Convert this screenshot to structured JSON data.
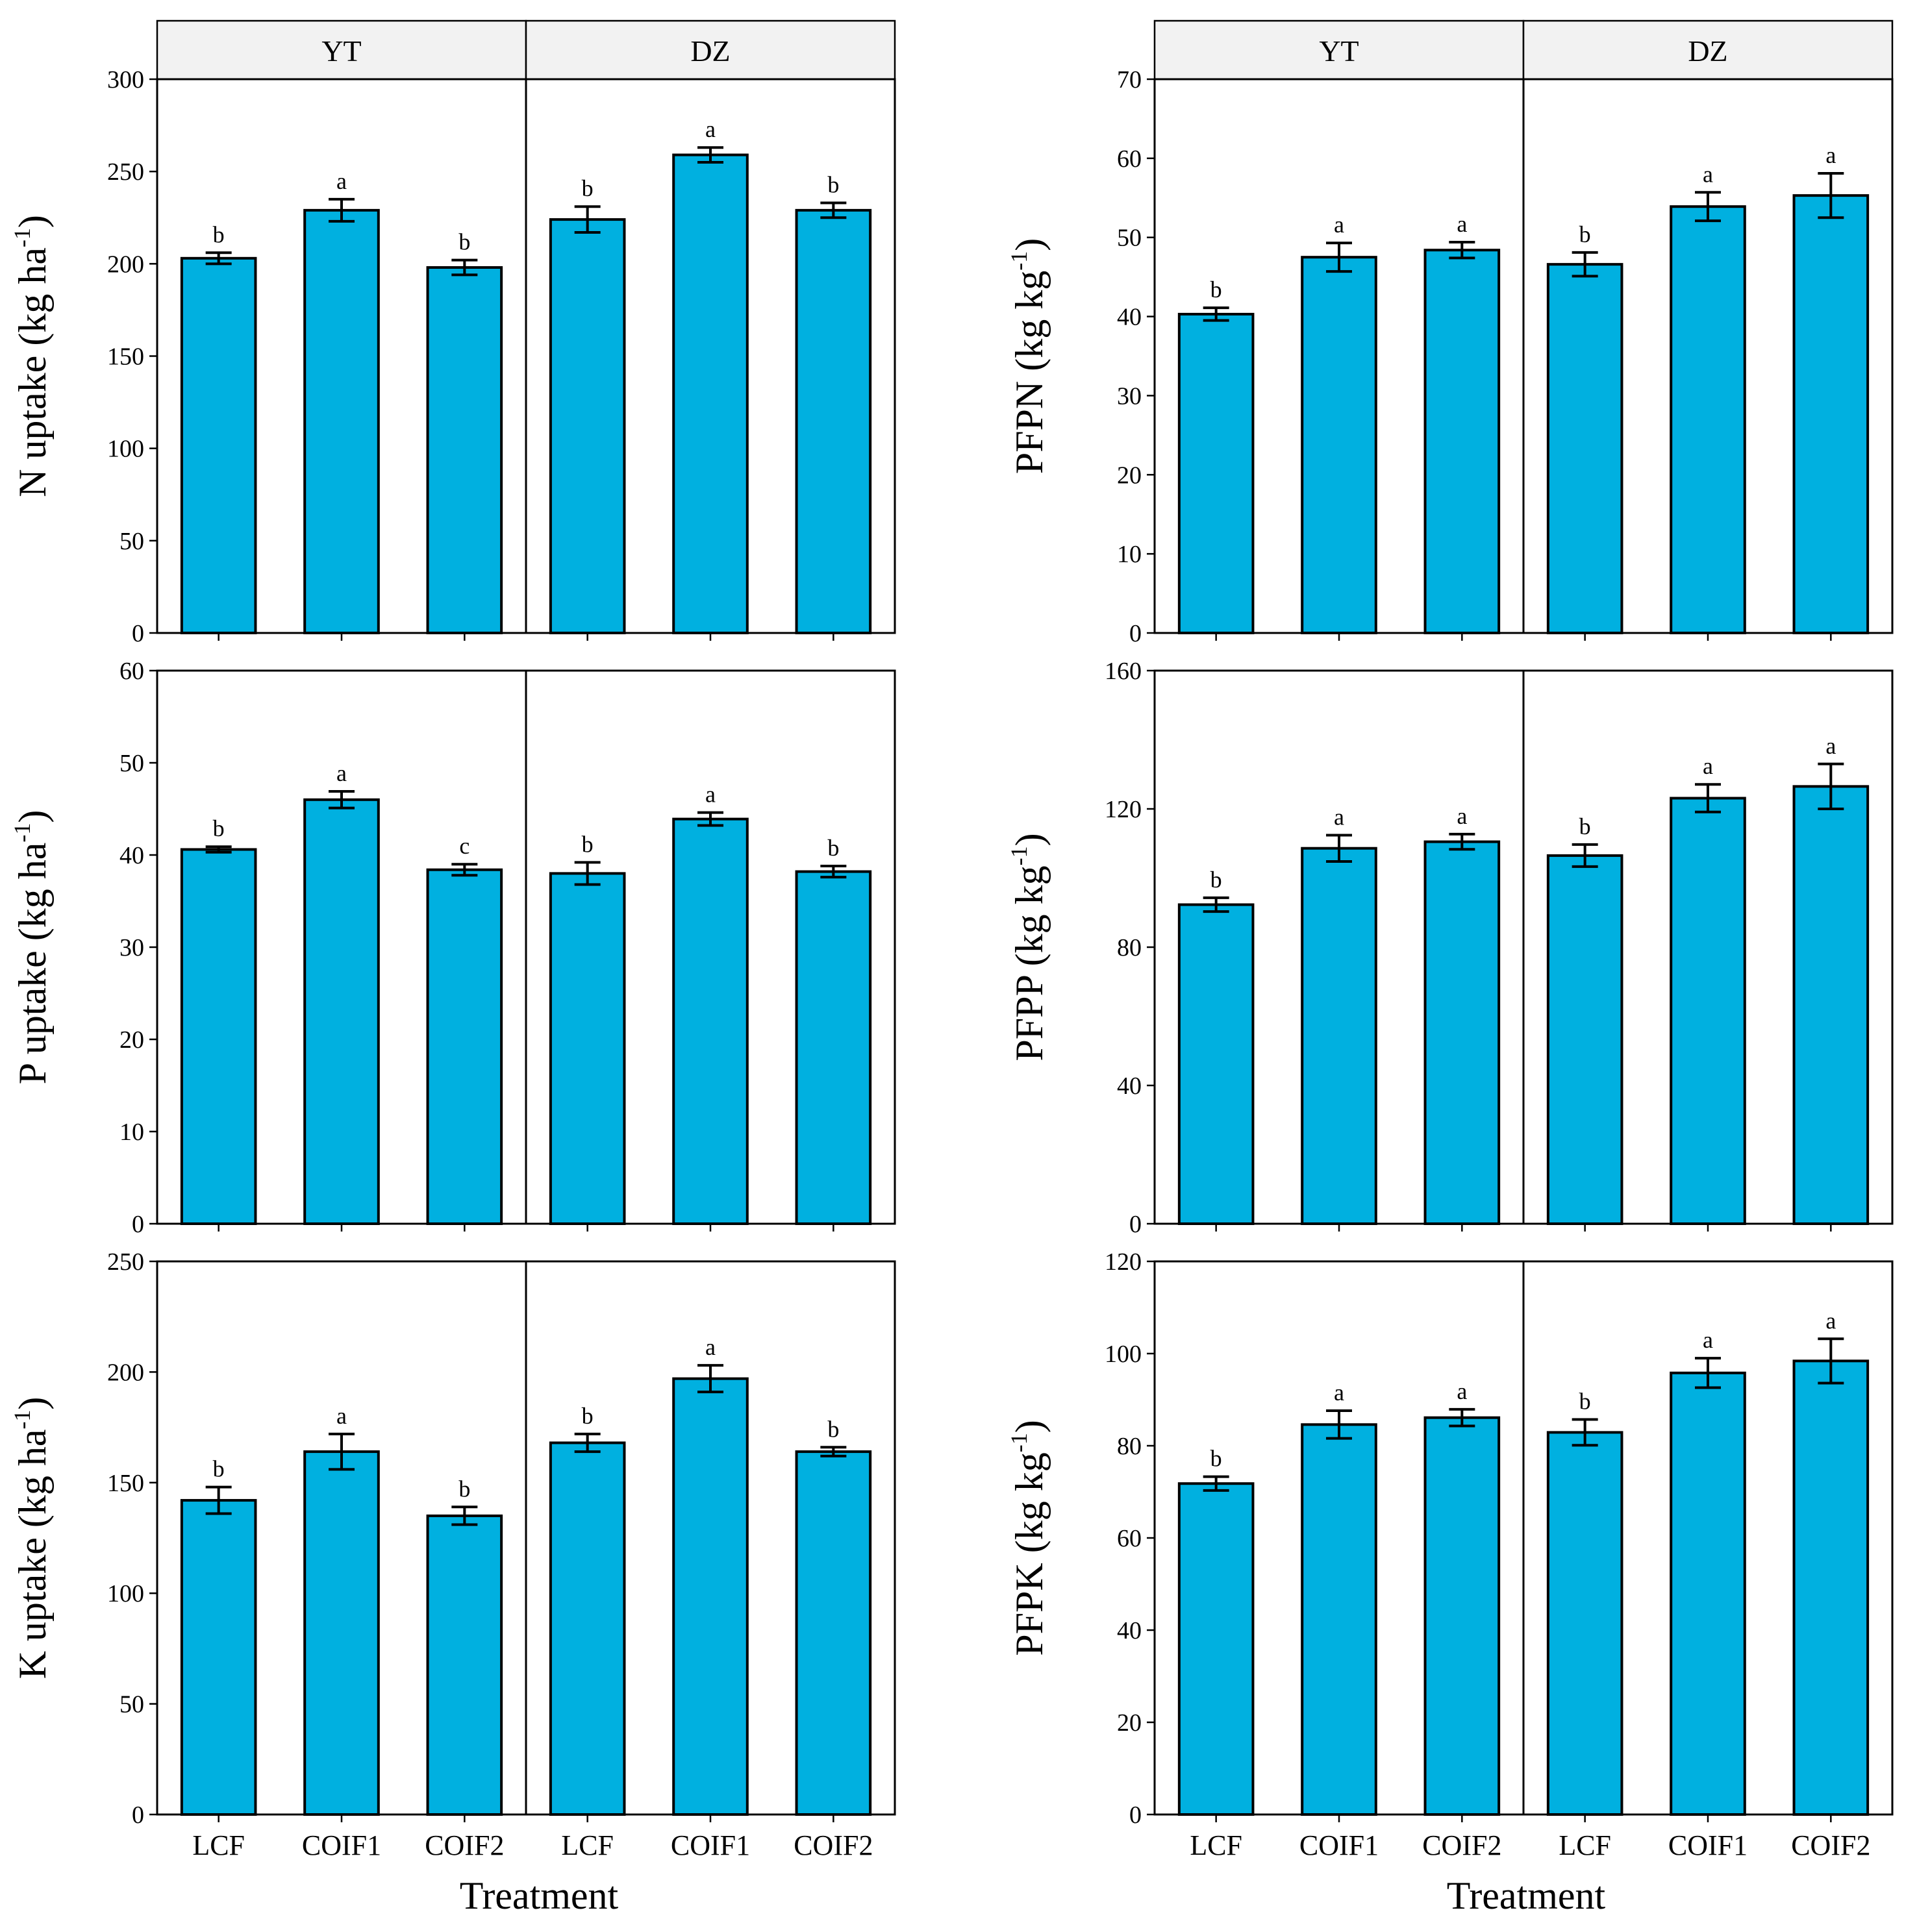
{
  "chart_data": [
    {
      "type": "bar",
      "id": "n-uptake",
      "ylabel": "N uptake (kg ha",
      "ylabel_sup": "-1",
      "ylabel_tail": ")",
      "ylim": [
        0,
        300
      ],
      "yticks": [
        0,
        50,
        100,
        150,
        200,
        250,
        300
      ],
      "tick_labels": [
        "0",
        "50",
        "100",
        "150",
        "200",
        "250",
        "300"
      ],
      "strips": [
        "YT",
        "DZ"
      ],
      "categories": [
        "LCF",
        "COIF1",
        "COIF2"
      ],
      "series": [
        {
          "name": "YT",
          "values": [
            203,
            229,
            198
          ],
          "errors": [
            3,
            6,
            4
          ],
          "letters": [
            "b",
            "a",
            "b"
          ]
        },
        {
          "name": "DZ",
          "values": [
            224,
            259,
            229
          ],
          "errors": [
            7,
            4,
            4
          ],
          "letters": [
            "b",
            "a",
            "b"
          ]
        }
      ]
    },
    {
      "type": "bar",
      "id": "pfpn",
      "ylabel": "PFPN (kg kg",
      "ylabel_sup": "-1",
      "ylabel_tail": ")",
      "ylim": [
        0,
        70
      ],
      "yticks": [
        0,
        10,
        20,
        30,
        40,
        50,
        60,
        70
      ],
      "tick_labels": [
        "0",
        "10",
        "20",
        "30",
        "40",
        "50",
        "60",
        "70"
      ],
      "strips": [
        "YT",
        "DZ"
      ],
      "categories": [
        "LCF",
        "COIF1",
        "COIF2"
      ],
      "series": [
        {
          "name": "YT",
          "values": [
            40.3,
            47.5,
            48.4
          ],
          "errors": [
            0.8,
            1.8,
            1.0
          ],
          "letters": [
            "b",
            "a",
            "a"
          ]
        },
        {
          "name": "DZ",
          "values": [
            46.6,
            53.9,
            55.3
          ],
          "errors": [
            1.5,
            1.8,
            2.8
          ],
          "letters": [
            "b",
            "a",
            "a"
          ]
        }
      ]
    },
    {
      "type": "bar",
      "id": "p-uptake",
      "ylabel": "P uptake (kg ha",
      "ylabel_sup": "-1",
      "ylabel_tail": ")",
      "ylim": [
        0,
        60
      ],
      "yticks": [
        0,
        10,
        20,
        30,
        40,
        50,
        60
      ],
      "tick_labels": [
        "0",
        "10",
        "20",
        "30",
        "40",
        "50",
        "60"
      ],
      "strips": [],
      "categories": [
        "LCF",
        "COIF1",
        "COIF2"
      ],
      "series": [
        {
          "name": "YT",
          "values": [
            40.6,
            46.0,
            38.4
          ],
          "errors": [
            0.3,
            0.9,
            0.6
          ],
          "letters": [
            "b",
            "a",
            "c"
          ]
        },
        {
          "name": "DZ",
          "values": [
            38.0,
            43.9,
            38.2
          ],
          "errors": [
            1.2,
            0.7,
            0.6
          ],
          "letters": [
            "b",
            "a",
            "b"
          ]
        }
      ]
    },
    {
      "type": "bar",
      "id": "pfpp",
      "ylabel": "PFPP (kg kg",
      "ylabel_sup": "-1",
      "ylabel_tail": ")",
      "ylim": [
        0,
        160
      ],
      "yticks": [
        0,
        40,
        80,
        120,
        160
      ],
      "tick_labels": [
        "0",
        "40",
        "80",
        "120",
        "160"
      ],
      "strips": [],
      "categories": [
        "LCF",
        "COIF1",
        "COIF2"
      ],
      "series": [
        {
          "name": "YT",
          "values": [
            92.3,
            108.6,
            110.5
          ],
          "errors": [
            2.0,
            3.8,
            2.2
          ],
          "letters": [
            "b",
            "a",
            "a"
          ]
        },
        {
          "name": "DZ",
          "values": [
            106.5,
            123.1,
            126.5
          ],
          "errors": [
            3.2,
            4.0,
            6.5
          ],
          "letters": [
            "b",
            "a",
            "a"
          ]
        }
      ]
    },
    {
      "type": "bar",
      "id": "k-uptake",
      "ylabel": "K uptake (kg ha",
      "ylabel_sup": "-1",
      "ylabel_tail": ")",
      "ylim": [
        0,
        250
      ],
      "yticks": [
        0,
        50,
        100,
        150,
        200,
        250
      ],
      "tick_labels": [
        "0",
        "50",
        "100",
        "150",
        "200",
        "250"
      ],
      "strips": [],
      "categories": [
        "LCF",
        "COIF1",
        "COIF2"
      ],
      "series": [
        {
          "name": "YT",
          "values": [
            142,
            164,
            135
          ],
          "errors": [
            6,
            8,
            4
          ],
          "letters": [
            "b",
            "a",
            "b"
          ]
        },
        {
          "name": "DZ",
          "values": [
            168,
            197,
            164
          ],
          "errors": [
            4,
            6,
            2
          ],
          "letters": [
            "b",
            "a",
            "b"
          ]
        }
      ]
    },
    {
      "type": "bar",
      "id": "pfpk",
      "ylabel": "PFPK (kg kg",
      "ylabel_sup": "-1",
      "ylabel_tail": ")",
      "ylim": [
        0,
        120
      ],
      "yticks": [
        0,
        20,
        40,
        60,
        80,
        100,
        120
      ],
      "tick_labels": [
        "0",
        "20",
        "40",
        "60",
        "80",
        "100",
        "120"
      ],
      "strips": [],
      "categories": [
        "LCF",
        "COIF1",
        "COIF2"
      ],
      "series": [
        {
          "name": "YT",
          "values": [
            71.8,
            84.6,
            86.1
          ],
          "errors": [
            1.5,
            3.0,
            1.8
          ],
          "letters": [
            "b",
            "a",
            "a"
          ]
        },
        {
          "name": "DZ",
          "values": [
            82.9,
            95.8,
            98.4
          ],
          "errors": [
            2.8,
            3.2,
            4.8
          ],
          "letters": [
            "b",
            "a",
            "a"
          ]
        }
      ]
    }
  ],
  "xlabel": "Treatment",
  "colors": {
    "bar_fill": "#00B0E0",
    "strip_fill": "#F2F2F2",
    "stroke": "#000000"
  }
}
